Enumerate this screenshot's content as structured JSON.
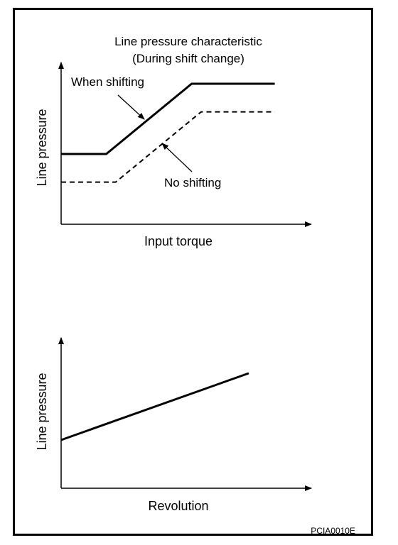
{
  "colors": {
    "line": "#000000",
    "background": "#ffffff",
    "frame": "#000000"
  },
  "figure_code": "PCIA0010E",
  "chart_data": [
    {
      "type": "line",
      "title": "Line pressure characteristic",
      "subtitle": "(During shift change)",
      "xlabel": "Input torque",
      "ylabel": "Line pressure",
      "axis_ticks": false,
      "grid": false,
      "series": [
        {
          "name": "When shifting",
          "style": "solid",
          "points": [
            [
              0,
              0.5
            ],
            [
              0.19,
              0.5
            ],
            [
              0.55,
              1.0
            ],
            [
              0.9,
              1.0
            ]
          ]
        },
        {
          "name": "No shifting",
          "style": "dashed",
          "points": [
            [
              0,
              0.3
            ],
            [
              0.23,
              0.3
            ],
            [
              0.59,
              0.8
            ],
            [
              0.9,
              0.8
            ]
          ]
        }
      ]
    },
    {
      "type": "line",
      "xlabel": "Revolution",
      "ylabel": "Line pressure",
      "axis_ticks": false,
      "grid": false,
      "series": [
        {
          "style": "solid",
          "points": [
            [
              0,
              0.42
            ],
            [
              0.79,
              1.0
            ]
          ]
        }
      ]
    }
  ]
}
